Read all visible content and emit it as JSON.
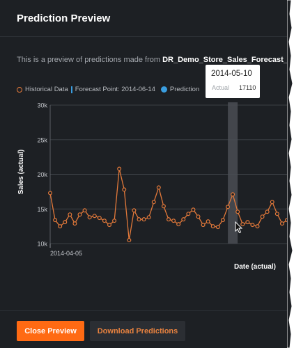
{
  "dialog": {
    "title": "Prediction Preview",
    "description_prefix": "This is a preview of predictions made from ",
    "description_source": "DR_Demo_Store_Sales_Forecast_Pre"
  },
  "legend": {
    "historical": "Historical Data",
    "forecast_point": "Forecast Point: 2014-06-14",
    "prediction": "Prediction"
  },
  "tooltip": {
    "date": "2014-05-10",
    "key": "Actual",
    "value": "17110"
  },
  "buttons": {
    "close": "Close Preview",
    "download": "Download Predictions"
  },
  "colors": {
    "historical": "#e3793a",
    "prediction": "#3a9ee0",
    "primary_button": "#ff6a13"
  },
  "chart_data": {
    "type": "line",
    "xlabel": "Date (actual)",
    "ylabel": "Sales (actual)",
    "ylim": [
      10000,
      30000
    ],
    "yticks": [
      10000,
      15000,
      20000,
      25000,
      30000
    ],
    "ytick_labels": [
      "10k",
      "15k",
      "20k",
      "25k",
      "30k"
    ],
    "x_tick_labels": [
      "2014-04-05"
    ],
    "highlight_date": "2014-05-10",
    "grid": true,
    "series": [
      {
        "name": "Historical Data",
        "values": [
          17300,
          13400,
          12500,
          13100,
          14200,
          12900,
          14200,
          14800,
          13800,
          14000,
          13700,
          13300,
          12700,
          13300,
          20800,
          17800,
          10500,
          14800,
          13500,
          13500,
          13800,
          16000,
          18100,
          15400,
          13500,
          13300,
          12800,
          13500,
          14300,
          14900,
          13900,
          12700,
          13200,
          12500,
          12400,
          13400,
          15300,
          17110,
          14600,
          12800,
          13100,
          12700,
          12500,
          13900,
          14600,
          16000,
          14300,
          12900,
          13400
        ]
      }
    ]
  }
}
